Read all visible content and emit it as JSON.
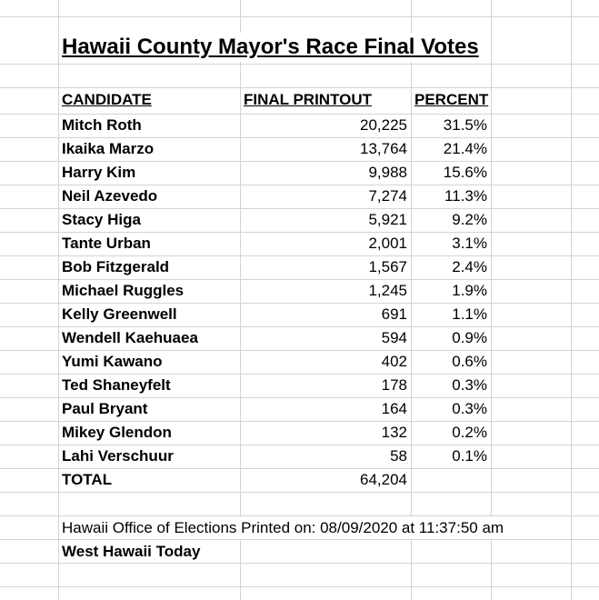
{
  "title": "Hawaii County Mayor's Race Final Votes",
  "table": {
    "headers": [
      "CANDIDATE",
      "FINAL PRINTOUT",
      "PERCENT"
    ],
    "rows": [
      [
        "Mitch Roth",
        "20,225",
        "31.5%"
      ],
      [
        "Ikaika Marzo",
        "13,764",
        "21.4%"
      ],
      [
        "Harry Kim",
        "9,988",
        "15.6%"
      ],
      [
        "Neil Azevedo",
        "7,274",
        "11.3%"
      ],
      [
        "Stacy Higa",
        "5,921",
        "9.2%"
      ],
      [
        "Tante Urban",
        "2,001",
        "3.1%"
      ],
      [
        "Bob Fitzgerald",
        "1,567",
        "2.4%"
      ],
      [
        "Michael Ruggles",
        "1,245",
        "1.9%"
      ],
      [
        "Kelly Greenwell",
        "691",
        "1.1%"
      ],
      [
        "Wendell Kaehuaea",
        "594",
        "0.9%"
      ],
      [
        "Yumi Kawano",
        "402",
        "0.6%"
      ],
      [
        "Ted Shaneyfelt",
        "178",
        "0.3%"
      ],
      [
        "Paul Bryant",
        "164",
        "0.3%"
      ],
      [
        "Mikey Glendon",
        "132",
        "0.2%"
      ],
      [
        "Lahi Verschuur",
        "58",
        "0.1%"
      ]
    ],
    "total": [
      "TOTAL",
      "64,204"
    ]
  },
  "note": "Hawaii Office of Elections Printed on: 08/09/2020 at 11:37:50 am",
  "source": "West Hawaii Today"
}
